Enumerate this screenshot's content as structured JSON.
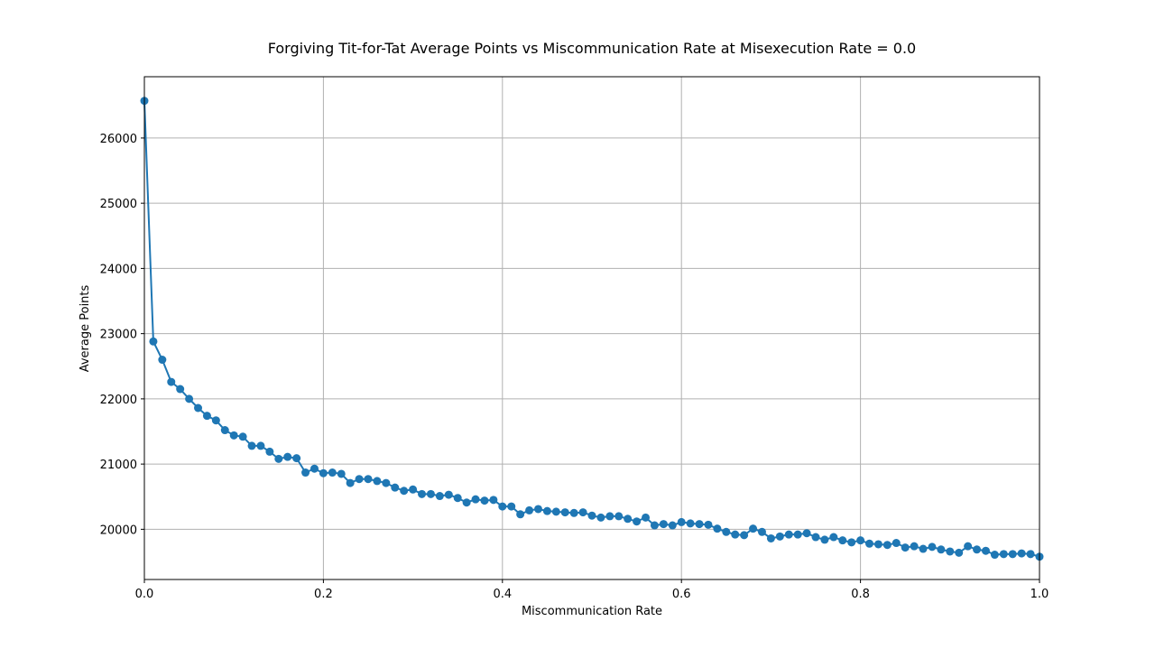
{
  "chart_data": {
    "type": "line",
    "title": "Forgiving Tit-for-Tat Average Points vs Miscommunication Rate at Misexecution Rate = 0.0",
    "xlabel": "Miscommunication Rate",
    "ylabel": "Average Points",
    "xlim": [
      0.0,
      1.0
    ],
    "ylim": [
      19230,
      26940
    ],
    "grid": true,
    "marker": "circle",
    "color": "#1f77b4",
    "xticks": [
      0.0,
      0.2,
      0.4,
      0.6,
      0.8,
      1.0
    ],
    "xtick_labels": [
      "0.0",
      "0.2",
      "0.4",
      "0.6",
      "0.8",
      "1.0"
    ],
    "yticks": [
      20000,
      21000,
      22000,
      23000,
      24000,
      25000,
      26000
    ],
    "ytick_labels": [
      "20000",
      "21000",
      "22000",
      "23000",
      "24000",
      "25000",
      "26000"
    ],
    "series": [
      {
        "x": [
          0.0,
          0.01,
          0.02,
          0.03,
          0.04,
          0.05,
          0.06,
          0.07,
          0.08,
          0.09,
          0.1,
          0.11,
          0.12,
          0.13,
          0.14,
          0.15,
          0.16,
          0.17,
          0.18,
          0.19,
          0.2,
          0.21,
          0.22,
          0.23,
          0.24,
          0.25,
          0.26,
          0.27,
          0.28,
          0.29,
          0.3,
          0.31,
          0.32,
          0.33,
          0.34,
          0.35,
          0.36,
          0.37,
          0.38,
          0.39,
          0.4,
          0.41,
          0.42,
          0.43,
          0.44,
          0.45,
          0.46,
          0.47,
          0.48,
          0.49,
          0.5,
          0.51,
          0.52,
          0.53,
          0.54,
          0.55,
          0.56,
          0.57,
          0.58,
          0.59,
          0.6,
          0.61,
          0.62,
          0.63,
          0.64,
          0.65,
          0.66,
          0.67,
          0.68,
          0.69,
          0.7,
          0.71,
          0.72,
          0.73,
          0.74,
          0.75,
          0.76,
          0.77,
          0.78,
          0.79,
          0.8,
          0.81,
          0.82,
          0.83,
          0.84,
          0.85,
          0.86,
          0.87,
          0.88,
          0.89,
          0.9,
          0.91,
          0.92,
          0.93,
          0.94,
          0.95,
          0.96,
          0.97,
          0.98,
          0.99,
          1.0
        ],
        "y": [
          26570,
          22880,
          22600,
          22260,
          22150,
          22000,
          21860,
          21740,
          21670,
          21520,
          21440,
          21420,
          21280,
          21280,
          21190,
          21080,
          21110,
          21090,
          20870,
          20930,
          20860,
          20870,
          20850,
          20710,
          20770,
          20770,
          20740,
          20710,
          20640,
          20590,
          20610,
          20540,
          20540,
          20510,
          20530,
          20480,
          20410,
          20460,
          20440,
          20450,
          20350,
          20350,
          20230,
          20290,
          20310,
          20280,
          20270,
          20260,
          20250,
          20260,
          20210,
          20180,
          20200,
          20200,
          20160,
          20120,
          20180,
          20060,
          20080,
          20060,
          20110,
          20090,
          20080,
          20070,
          20010,
          19960,
          19920,
          19910,
          20010,
          19960,
          19860,
          19890,
          19920,
          19920,
          19940,
          19880,
          19840,
          19880,
          19830,
          19800,
          19830,
          19780,
          19770,
          19760,
          19790,
          19720,
          19740,
          19700,
          19730,
          19690,
          19660,
          19640,
          19740,
          19690,
          19670,
          19610,
          19620,
          19620,
          19630,
          19620,
          19580
        ]
      }
    ]
  }
}
